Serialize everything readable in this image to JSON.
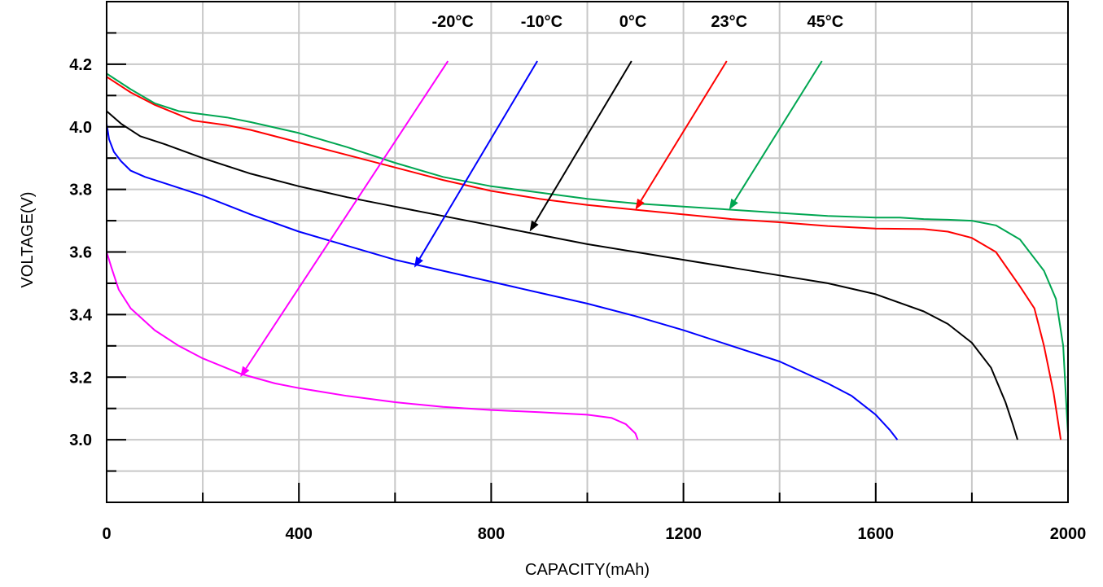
{
  "chart_data": {
    "type": "line",
    "xlabel": "CAPACITY(mAh)",
    "ylabel": "VOLTAGE(V)",
    "xlim": [
      0,
      2000
    ],
    "ylim": [
      2.8,
      4.4
    ],
    "x_ticks": [
      "0",
      "400",
      "800",
      "1200",
      "1600",
      "2000"
    ],
    "x_tick_values": [
      0,
      400,
      800,
      1200,
      1600,
      2000
    ],
    "y_ticks": [
      "3.0",
      "3.2",
      "3.4",
      "3.6",
      "3.8",
      "4.0",
      "4.2"
    ],
    "y_tick_values": [
      3.0,
      3.2,
      3.4,
      3.6,
      3.8,
      4.0,
      4.2
    ],
    "grid": true,
    "series": [
      {
        "name": "-20°C",
        "color": "#ff00ff",
        "label_pos": [
          720,
          4.32
        ],
        "arrow_from": [
          710,
          4.21
        ],
        "arrow_to": [
          278,
          3.2
        ],
        "points": [
          [
            0,
            3.6
          ],
          [
            10,
            3.55
          ],
          [
            25,
            3.48
          ],
          [
            50,
            3.42
          ],
          [
            100,
            3.35
          ],
          [
            150,
            3.3
          ],
          [
            200,
            3.26
          ],
          [
            280,
            3.21
          ],
          [
            350,
            3.18
          ],
          [
            400,
            3.165
          ],
          [
            500,
            3.14
          ],
          [
            600,
            3.12
          ],
          [
            700,
            3.105
          ],
          [
            800,
            3.095
          ],
          [
            900,
            3.088
          ],
          [
            1000,
            3.08
          ],
          [
            1050,
            3.07
          ],
          [
            1080,
            3.05
          ],
          [
            1100,
            3.02
          ],
          [
            1105,
            3.0
          ]
        ]
      },
      {
        "name": "-10°C",
        "color": "#0000ff",
        "label_pos": [
          905,
          4.32
        ],
        "arrow_from": [
          896,
          4.21
        ],
        "arrow_to": [
          640,
          3.55
        ],
        "points": [
          [
            0,
            4.01
          ],
          [
            5,
            3.96
          ],
          [
            15,
            3.92
          ],
          [
            30,
            3.89
          ],
          [
            50,
            3.86
          ],
          [
            80,
            3.84
          ],
          [
            120,
            3.82
          ],
          [
            200,
            3.78
          ],
          [
            300,
            3.72
          ],
          [
            400,
            3.665
          ],
          [
            500,
            3.62
          ],
          [
            600,
            3.575
          ],
          [
            700,
            3.54
          ],
          [
            800,
            3.505
          ],
          [
            900,
            3.47
          ],
          [
            1000,
            3.435
          ],
          [
            1100,
            3.395
          ],
          [
            1200,
            3.35
          ],
          [
            1300,
            3.3
          ],
          [
            1400,
            3.25
          ],
          [
            1500,
            3.18
          ],
          [
            1550,
            3.14
          ],
          [
            1600,
            3.08
          ],
          [
            1630,
            3.03
          ],
          [
            1645,
            3.0
          ]
        ]
      },
      {
        "name": "0°C",
        "color": "#000000",
        "label_pos": [
          1095,
          4.32
        ],
        "arrow_from": [
          1092,
          4.21
        ],
        "arrow_to": [
          880,
          3.665
        ],
        "points": [
          [
            0,
            4.05
          ],
          [
            30,
            4.01
          ],
          [
            70,
            3.97
          ],
          [
            120,
            3.945
          ],
          [
            200,
            3.9
          ],
          [
            300,
            3.85
          ],
          [
            400,
            3.81
          ],
          [
            500,
            3.775
          ],
          [
            600,
            3.745
          ],
          [
            700,
            3.715
          ],
          [
            800,
            3.685
          ],
          [
            900,
            3.655
          ],
          [
            1000,
            3.625
          ],
          [
            1100,
            3.6
          ],
          [
            1200,
            3.575
          ],
          [
            1300,
            3.55
          ],
          [
            1400,
            3.525
          ],
          [
            1500,
            3.5
          ],
          [
            1600,
            3.465
          ],
          [
            1700,
            3.41
          ],
          [
            1750,
            3.37
          ],
          [
            1800,
            3.31
          ],
          [
            1840,
            3.23
          ],
          [
            1870,
            3.12
          ],
          [
            1885,
            3.05
          ],
          [
            1895,
            3.0
          ]
        ]
      },
      {
        "name": "23°C",
        "color": "#ff0000",
        "label_pos": [
          1295,
          4.32
        ],
        "arrow_from": [
          1290,
          4.21
        ],
        "arrow_to": [
          1100,
          3.735
        ],
        "points": [
          [
            0,
            4.16
          ],
          [
            50,
            4.11
          ],
          [
            100,
            4.07
          ],
          [
            180,
            4.02
          ],
          [
            250,
            4.005
          ],
          [
            300,
            3.99
          ],
          [
            400,
            3.95
          ],
          [
            500,
            3.91
          ],
          [
            600,
            3.87
          ],
          [
            700,
            3.83
          ],
          [
            800,
            3.795
          ],
          [
            900,
            3.77
          ],
          [
            1000,
            3.75
          ],
          [
            1100,
            3.735
          ],
          [
            1200,
            3.72
          ],
          [
            1300,
            3.705
          ],
          [
            1400,
            3.695
          ],
          [
            1500,
            3.683
          ],
          [
            1600,
            3.675
          ],
          [
            1700,
            3.673
          ],
          [
            1750,
            3.665
          ],
          [
            1800,
            3.645
          ],
          [
            1850,
            3.6
          ],
          [
            1900,
            3.49
          ],
          [
            1930,
            3.42
          ],
          [
            1950,
            3.3
          ],
          [
            1970,
            3.15
          ],
          [
            1982,
            3.03
          ],
          [
            1985,
            3.0
          ]
        ]
      },
      {
        "name": "45°C",
        "color": "#00a651",
        "label_pos": [
          1495,
          4.32
        ],
        "arrow_from": [
          1488,
          4.21
        ],
        "arrow_to": [
          1295,
          3.735
        ],
        "points": [
          [
            0,
            4.17
          ],
          [
            50,
            4.12
          ],
          [
            100,
            4.075
          ],
          [
            150,
            4.05
          ],
          [
            250,
            4.03
          ],
          [
            300,
            4.015
          ],
          [
            400,
            3.98
          ],
          [
            500,
            3.935
          ],
          [
            600,
            3.885
          ],
          [
            700,
            3.84
          ],
          [
            800,
            3.81
          ],
          [
            900,
            3.79
          ],
          [
            1000,
            3.77
          ],
          [
            1100,
            3.755
          ],
          [
            1200,
            3.745
          ],
          [
            1300,
            3.735
          ],
          [
            1400,
            3.725
          ],
          [
            1500,
            3.715
          ],
          [
            1600,
            3.71
          ],
          [
            1650,
            3.71
          ],
          [
            1700,
            3.705
          ],
          [
            1750,
            3.703
          ],
          [
            1800,
            3.7
          ],
          [
            1850,
            3.685
          ],
          [
            1900,
            3.64
          ],
          [
            1950,
            3.54
          ],
          [
            1975,
            3.45
          ],
          [
            1990,
            3.3
          ],
          [
            1997,
            3.1
          ],
          [
            2000,
            3.02
          ]
        ]
      }
    ]
  }
}
